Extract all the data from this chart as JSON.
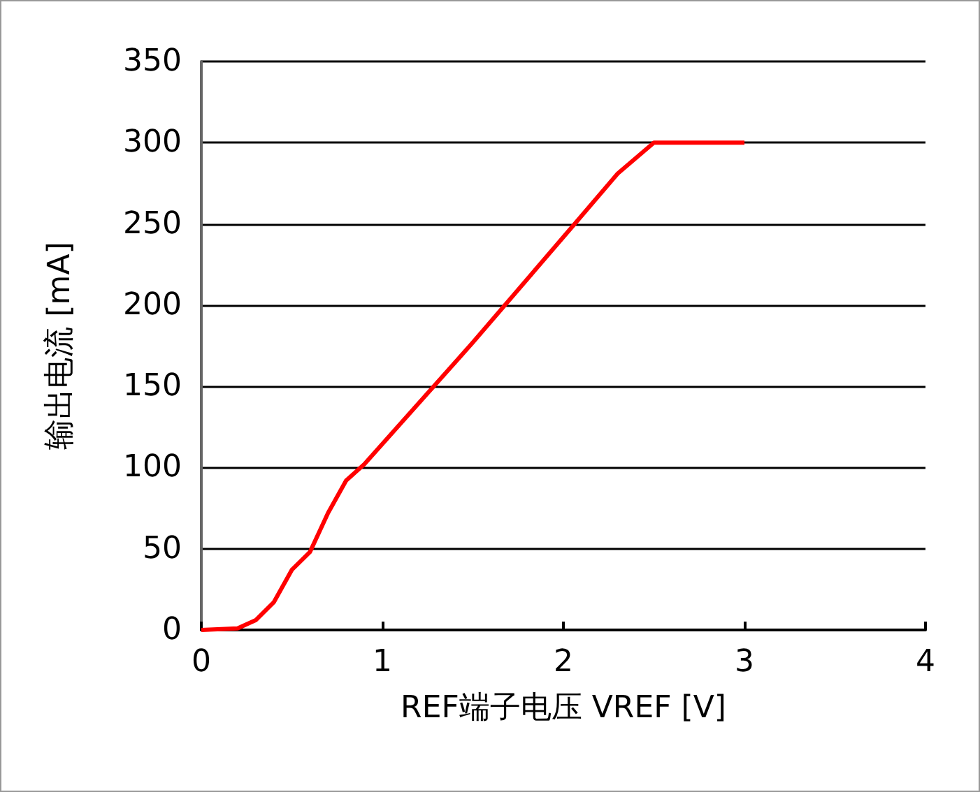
{
  "chart_data": {
    "type": "line",
    "xlabel": "REF端子电压 VREF [V]",
    "ylabel": "输出电流 [mA]",
    "series": [
      {
        "color": "#ff0000",
        "x": [
          0,
          0.2,
          0.3,
          0.4,
          0.5,
          0.6,
          0.7,
          0.8,
          0.9,
          1.5,
          2.07,
          2.3,
          2.5,
          3
        ],
        "values": [
          0,
          1,
          6,
          17,
          37,
          48,
          72,
          92,
          102,
          177,
          251,
          281,
          300,
          300
        ]
      }
    ],
    "xlim": [
      0,
      4
    ],
    "xticks": [
      0,
      1,
      2,
      3,
      4
    ],
    "ylim": [
      0,
      350
    ],
    "yticks": [
      0,
      50,
      100,
      150,
      200,
      250,
      300,
      350
    ],
    "grid": "y",
    "marker": "none",
    "line_style": "solid"
  }
}
